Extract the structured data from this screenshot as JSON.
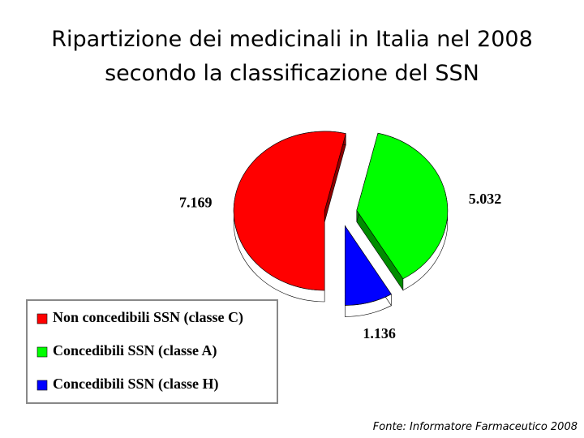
{
  "chart_data": {
    "type": "pie",
    "title": [
      "Ripartizione dei medicinali in Italia nel 2008",
      "secondo la classificazione del SSN"
    ],
    "categories": [
      "Non concedibili SSN (classe C)",
      "Concedibili SSN (classe A)",
      "Concedibili SSN (classe H)"
    ],
    "values": [
      7169,
      5032,
      1136
    ],
    "value_labels": [
      "7.169",
      "5.032",
      "1.136"
    ],
    "colors": [
      "#ff0000",
      "#00ff00",
      "#0000ff"
    ],
    "source": "Fonte: Informatore Farmaceutico 2008"
  }
}
